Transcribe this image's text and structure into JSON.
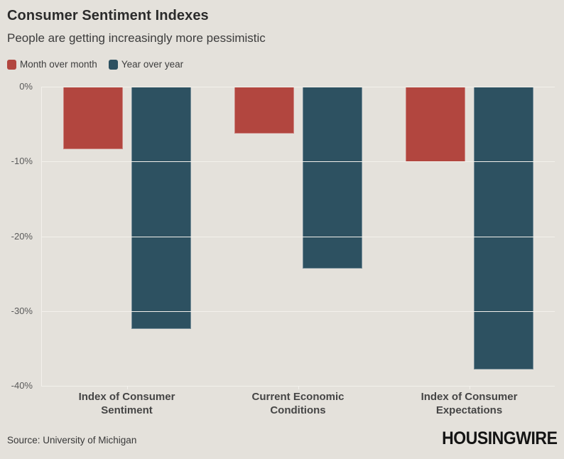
{
  "header": {
    "title": "Consumer Sentiment Indexes",
    "subtitle": "People are getting increasingly more pessimistic"
  },
  "legend": [
    {
      "label": "Month over month",
      "color": "#b2463f"
    },
    {
      "label": "Year over year",
      "color": "#2d5161"
    }
  ],
  "chart_data": {
    "type": "bar",
    "title": "Consumer Sentiment Indexes",
    "subtitle": "People are getting increasingly more pessimistic",
    "categories": [
      "Index of Consumer Sentiment",
      "Current Economic Conditions",
      "Index of Consumer Expectations"
    ],
    "series": [
      {
        "name": "Month over month",
        "color": "#b2463f",
        "values": [
          -8.4,
          -6.3,
          -10.1
        ]
      },
      {
        "name": "Year over year",
        "color": "#2d5161",
        "values": [
          -32.4,
          -24.3,
          -37.8
        ]
      }
    ],
    "xlabel": "",
    "ylabel": "",
    "ylim": [
      -40,
      0
    ],
    "yticks": [
      "0%",
      "-10%",
      "-20%",
      "-30%",
      "-40%"
    ],
    "grid": true,
    "legend_position": "top",
    "bar_orientation": "vertical-negative"
  },
  "colors": {
    "background": "#e4e1db",
    "gridline": "#f3f1ec",
    "month_over_month": "#b2463f",
    "year_over_year": "#2d5161"
  },
  "footer": {
    "source": "Source: University of Michigan",
    "logo": "HOUSINGWIRE"
  }
}
